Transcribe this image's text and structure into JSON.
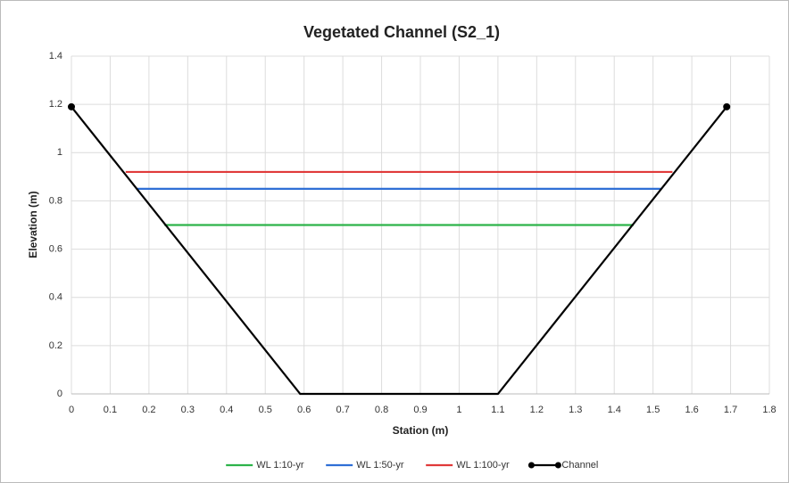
{
  "chart_data": {
    "type": "line",
    "title": "Vegetated Channel (S2_1)",
    "x_label": "Station (m)",
    "y_label": "Elevation (m)",
    "series": [
      {
        "name": "WL 1:10-yr",
        "color": "#2db34a",
        "x": [
          0.24,
          1.45
        ],
        "values": [
          0.7,
          0.7
        ]
      },
      {
        "name": "WL 1:50-yr",
        "color": "#2f6fd6",
        "x": [
          0.17,
          1.52
        ],
        "values": [
          0.85,
          0.85
        ]
      },
      {
        "name": "WL 1:100-yr",
        "color": "#e03a3a",
        "x": [
          0.14,
          1.55
        ],
        "values": [
          0.92,
          0.92
        ]
      },
      {
        "name": "Channel",
        "color": "#000000",
        "x": [
          0,
          0.59,
          1.1,
          1.69
        ],
        "values": [
          1.19,
          0,
          0,
          1.19
        ],
        "markers": true
      }
    ],
    "xlim": [
      0,
      1.8
    ],
    "xticks": [
      0,
      0.1,
      0.2,
      0.3,
      0.4,
      0.5,
      0.6,
      0.7,
      0.8,
      0.9,
      1,
      1.1,
      1.2,
      1.3,
      1.4,
      1.5,
      1.6,
      1.7,
      1.8
    ],
    "ylim": [
      0,
      1.4
    ],
    "yticks": [
      0,
      0.2,
      0.4,
      0.6,
      0.8,
      1,
      1.2,
      1.4
    ],
    "grid": true,
    "legend": "bottom"
  }
}
